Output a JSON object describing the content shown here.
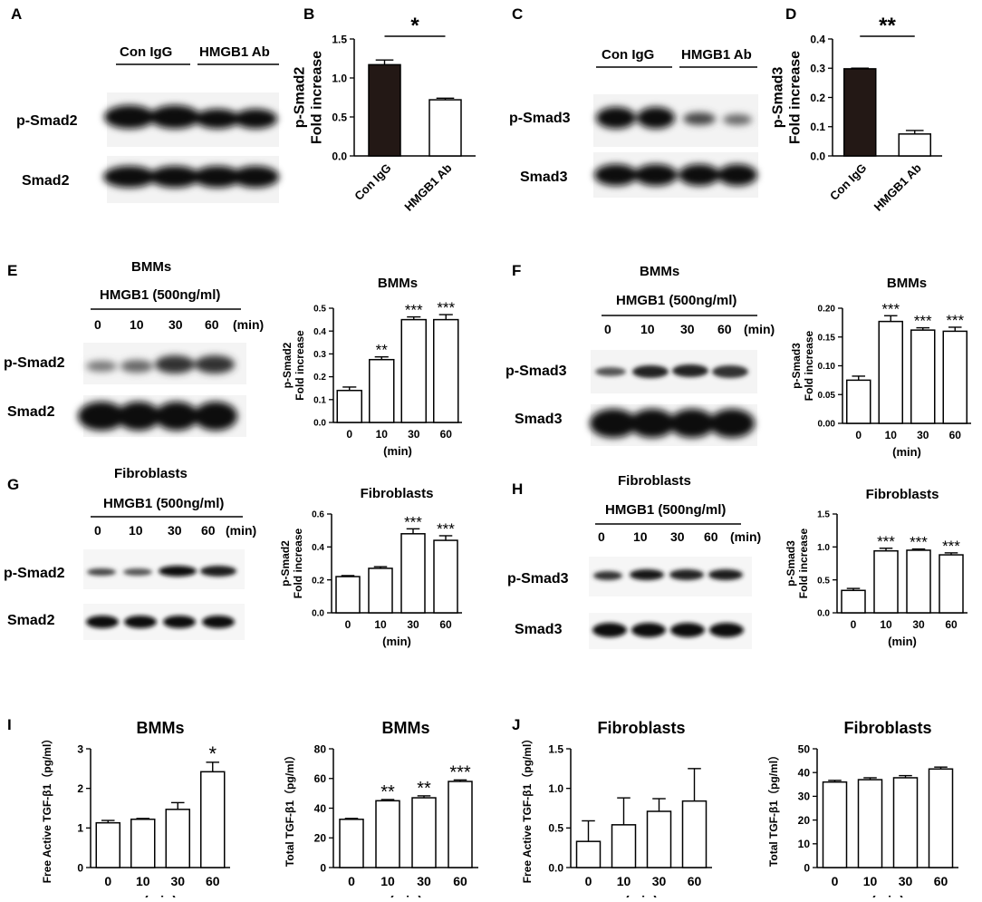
{
  "panels": [
    "A",
    "B",
    "C",
    "D",
    "E",
    "F",
    "G",
    "H",
    "I",
    "J"
  ],
  "blots": {
    "A": {
      "groups": [
        "Con IgG",
        "HMGB1 Ab"
      ],
      "rows": [
        "p-Smad2",
        "Smad2"
      ]
    },
    "C": {
      "groups": [
        "Con IgG",
        "HMGB1 Ab"
      ],
      "rows": [
        "p-Smad3",
        "Smad3"
      ]
    },
    "E": {
      "title": "BMMs",
      "treatment": "HMGB1 (500ng/ml)",
      "times": [
        "0",
        "10",
        "30",
        "60"
      ],
      "unit": "(min)",
      "rows": [
        "p-Smad2",
        "Smad2"
      ]
    },
    "F": {
      "title": "BMMs",
      "treatment": "HMGB1 (500ng/ml)",
      "times": [
        "0",
        "10",
        "30",
        "60"
      ],
      "unit": "(min)",
      "rows": [
        "p-Smad3",
        "Smad3"
      ]
    },
    "G": {
      "title": "Fibroblasts",
      "treatment": "HMGB1 (500ng/ml)",
      "times": [
        "0",
        "10",
        "30",
        "60"
      ],
      "unit": "(min)",
      "rows": [
        "p-Smad2",
        "Smad2"
      ]
    },
    "H": {
      "title": "Fibroblasts",
      "treatment": "HMGB1 (500ng/ml)",
      "times": [
        "0",
        "10",
        "30",
        "60"
      ],
      "unit": "(min)",
      "rows": [
        "p-Smad3",
        "Smad3"
      ]
    }
  },
  "chart_data": [
    {
      "id": "B",
      "type": "bar",
      "title": "",
      "ylabel": [
        "p-Smad2",
        "Fold increase"
      ],
      "xlabel": "",
      "categories": [
        "Con IgG",
        "HMGB1 Ab"
      ],
      "values": [
        1.17,
        0.72
      ],
      "errors": [
        0.06,
        0.02
      ],
      "fills": [
        "#231815",
        "#ffffff"
      ],
      "ylim": [
        0,
        1.5
      ],
      "yticks": [
        "0.0",
        "0.5",
        "1.0",
        "1.5"
      ],
      "rotated_xticks": true,
      "stars": [
        {
          "text": "*",
          "bracket": true
        }
      ]
    },
    {
      "id": "D",
      "type": "bar",
      "title": "",
      "ylabel": [
        "p-Smad3",
        "Fold increase"
      ],
      "xlabel": "",
      "categories": [
        "Con IgG",
        "HMGB1 Ab"
      ],
      "values": [
        0.298,
        0.075
      ],
      "errors": [
        0.002,
        0.012
      ],
      "fills": [
        "#231815",
        "#ffffff"
      ],
      "ylim": [
        0,
        0.4
      ],
      "yticks": [
        "0.0",
        "0.1",
        "0.2",
        "0.3",
        "0.4"
      ],
      "rotated_xticks": true,
      "stars": [
        {
          "text": "**",
          "bracket": true
        }
      ]
    },
    {
      "id": "E",
      "type": "bar",
      "title": "BMMs",
      "ylabel": [
        "p-Smad2",
        "Fold increase"
      ],
      "xlabel": "(min)",
      "categories": [
        "0",
        "10",
        "30",
        "60"
      ],
      "values": [
        0.14,
        0.275,
        0.45,
        0.45
      ],
      "errors": [
        0.015,
        0.012,
        0.012,
        0.022
      ],
      "ylim": [
        0,
        0.5
      ],
      "yticks": [
        "0.0",
        "0.1",
        "0.2",
        "0.3",
        "0.4",
        "0.5"
      ],
      "stars": [
        "",
        "**",
        "***",
        "***"
      ]
    },
    {
      "id": "F",
      "type": "bar",
      "title": "BMMs",
      "ylabel": [
        "p-Smad3",
        "Fold increase"
      ],
      "xlabel": "(min)",
      "categories": [
        "0",
        "10",
        "30",
        "60"
      ],
      "values": [
        0.075,
        0.177,
        0.162,
        0.16
      ],
      "errors": [
        0.007,
        0.01,
        0.004,
        0.007
      ],
      "ylim": [
        0,
        0.2
      ],
      "yticks": [
        "0.00",
        "0.05",
        "0.10",
        "0.15",
        "0.20"
      ],
      "stars": [
        "",
        "***",
        "***",
        "***"
      ]
    },
    {
      "id": "G",
      "type": "bar",
      "title": "Fibroblasts",
      "ylabel": [
        "p-Smad2",
        "Fold increase"
      ],
      "xlabel": "(min)",
      "categories": [
        "0",
        "10",
        "30",
        "60"
      ],
      "values": [
        0.22,
        0.27,
        0.48,
        0.44
      ],
      "errors": [
        0.006,
        0.01,
        0.03,
        0.028
      ],
      "ylim": [
        0,
        0.6
      ],
      "yticks": [
        "0.0",
        "0.2",
        "0.4",
        "0.6"
      ],
      "stars": [
        "",
        "",
        "***",
        "***"
      ]
    },
    {
      "id": "H",
      "type": "bar",
      "title": "Fibroblasts",
      "ylabel": [
        "p-Smad3",
        "Fold increase"
      ],
      "xlabel": "(min)",
      "categories": [
        "0",
        "10",
        "30",
        "60"
      ],
      "values": [
        0.34,
        0.94,
        0.95,
        0.88
      ],
      "errors": [
        0.03,
        0.04,
        0.018,
        0.03
      ],
      "ylim": [
        0,
        1.5
      ],
      "yticks": [
        "0.0",
        "0.5",
        "1.0",
        "1.5"
      ],
      "stars": [
        "",
        "***",
        "***",
        "***"
      ]
    },
    {
      "id": "I1",
      "type": "bar",
      "title": "BMMs",
      "ylabel": [
        "Free Active TGF-β1（pg/ml）"
      ],
      "xlabel": "(min)",
      "categories": [
        "0",
        "10",
        "30",
        "60"
      ],
      "values": [
        1.13,
        1.22,
        1.47,
        2.42
      ],
      "errors": [
        0.06,
        0.02,
        0.17,
        0.24
      ],
      "ylim": [
        0,
        3
      ],
      "yticks": [
        "0",
        "1",
        "2",
        "3"
      ],
      "stars": [
        "",
        "",
        "",
        "*"
      ]
    },
    {
      "id": "I2",
      "type": "bar",
      "title": "BMMs",
      "ylabel": [
        "Total TGF-β1（pg/ml）"
      ],
      "xlabel": "(min)",
      "categories": [
        "0",
        "10",
        "30",
        "60"
      ],
      "values": [
        32.5,
        45,
        47,
        58
      ],
      "errors": [
        0.6,
        0.8,
        1.3,
        1.0
      ],
      "ylim": [
        0,
        80
      ],
      "yticks": [
        "0",
        "20",
        "40",
        "60",
        "80"
      ],
      "stars": [
        "",
        "**",
        "**",
        "***"
      ]
    },
    {
      "id": "J1",
      "type": "bar",
      "title": "Fibroblasts",
      "ylabel": [
        "Free Active TGF-β1（pg/ml）"
      ],
      "xlabel": "(min)",
      "categories": [
        "0",
        "10",
        "30",
        "60"
      ],
      "values": [
        0.33,
        0.54,
        0.71,
        0.84
      ],
      "errors": [
        0.26,
        0.34,
        0.16,
        0.41
      ],
      "ylim": [
        0,
        1.5
      ],
      "yticks": [
        "0.0",
        "0.5",
        "1.0",
        "1.5"
      ],
      "stars": [
        "",
        "",
        "",
        ""
      ]
    },
    {
      "id": "J2",
      "type": "bar",
      "title": "Fibroblasts",
      "ylabel": [
        "Total TGF-β1（pg/ml）"
      ],
      "xlabel": "(min)",
      "categories": [
        "0",
        "10",
        "30",
        "60"
      ],
      "values": [
        36,
        37,
        37.8,
        41.5
      ],
      "errors": [
        0.7,
        0.8,
        0.9,
        0.8
      ],
      "ylim": [
        0,
        50
      ],
      "yticks": [
        "0",
        "10",
        "20",
        "30",
        "40",
        "50"
      ],
      "stars": [
        "",
        "",
        "",
        ""
      ]
    }
  ]
}
